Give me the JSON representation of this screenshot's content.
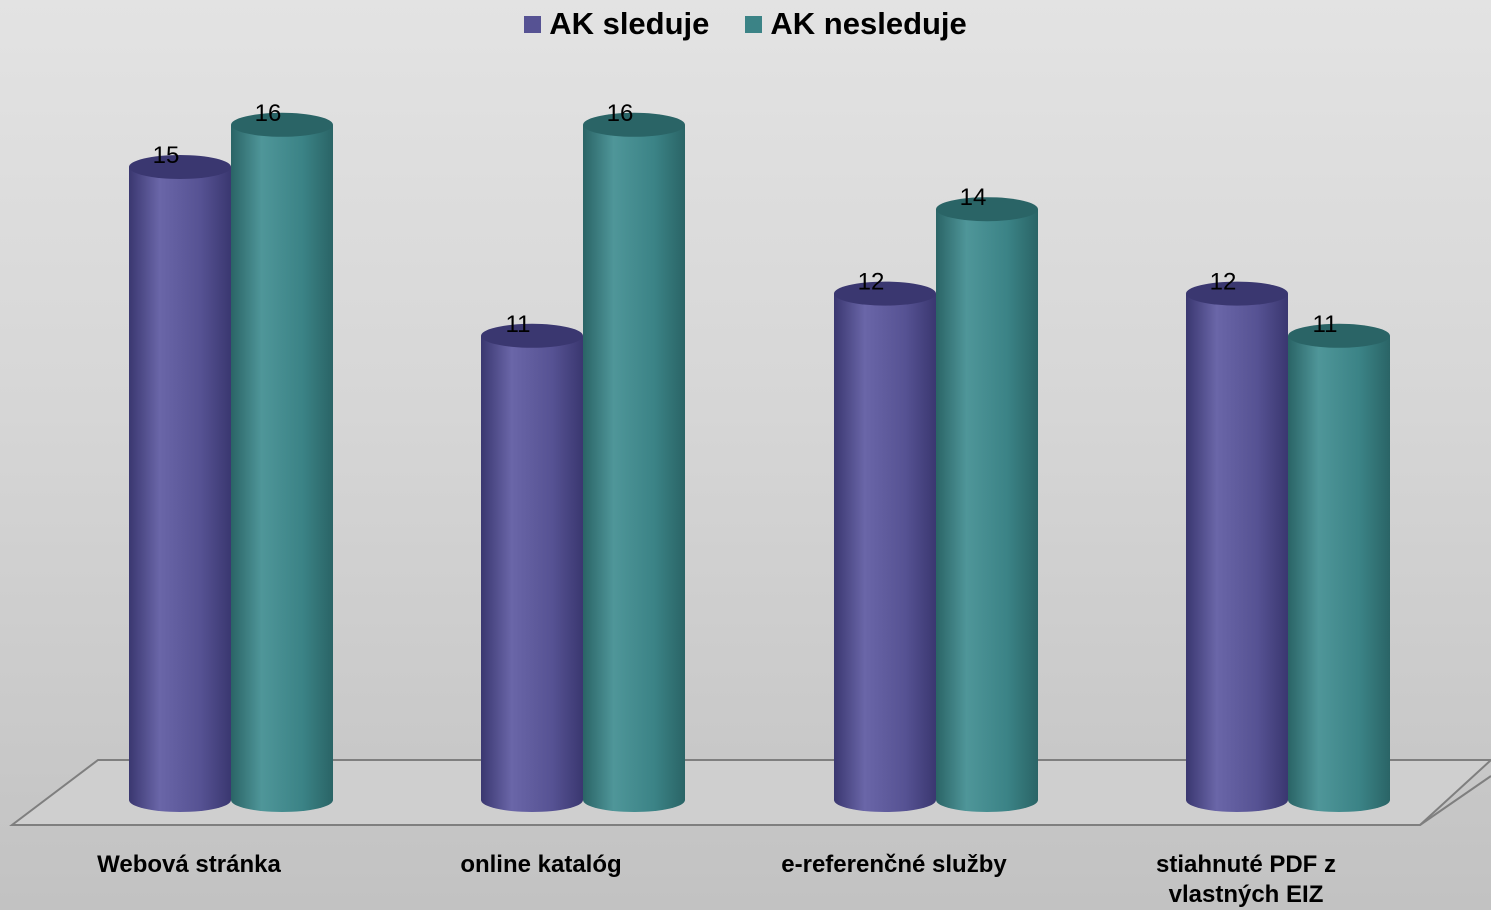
{
  "chart_data": {
    "type": "bar",
    "title": "",
    "xlabel": "",
    "ylabel": "",
    "categories": [
      "Webová stránka",
      "online katalóg",
      "e-referenčné služby",
      "stiahnuté PDF z vlastných EIZ"
    ],
    "category_lines": [
      [
        "Webová stránka"
      ],
      [
        "online katalóg"
      ],
      [
        "e-referenčné služby"
      ],
      [
        "stiahnuté PDF z",
        "vlastných EIZ"
      ]
    ],
    "series": [
      {
        "name": "AK sleduje",
        "values": [
          15,
          11,
          12,
          12
        ],
        "color": "#565293",
        "color_dark": "#3a3770",
        "color_light": "#6a66a8"
      },
      {
        "name": "AK nesleduje",
        "values": [
          16,
          16,
          14,
          11
        ],
        "color": "#3b8386",
        "color_dark": "#2a6466",
        "color_light": "#4f9699"
      }
    ],
    "ylim": [
      0,
      16
    ],
    "grid": false,
    "legend_position": "top",
    "style": "3d-cylinder",
    "data_labels": true
  }
}
